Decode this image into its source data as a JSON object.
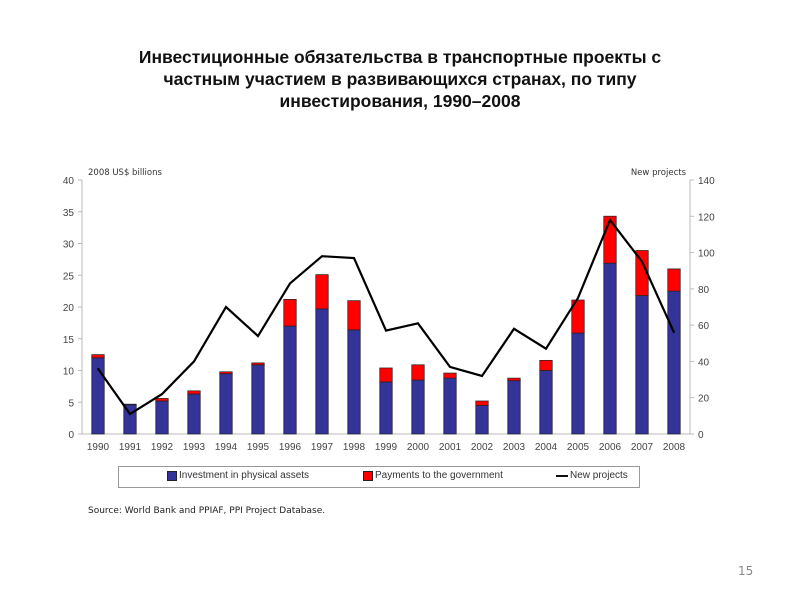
{
  "title": "Инвестиционные обязательства в транспортные проекты  с частным участием в развивающихся странах, по типу инвестирования, 1990–2008",
  "source": "Source: World Bank and PPIAF, PPI Project Database.",
  "page_number": "15",
  "chart_data": {
    "type": "bar",
    "stacked": true,
    "title": "",
    "y_left_label": "2008 US$ billions",
    "y_right_label": "New projects",
    "ylim_left": [
      0,
      40
    ],
    "yticks_left": [
      0,
      5,
      10,
      15,
      20,
      25,
      30,
      35,
      40
    ],
    "ylim_right": [
      0,
      140
    ],
    "yticks_right": [
      0,
      20,
      40,
      60,
      80,
      100,
      120,
      140
    ],
    "grid": false,
    "legend_position": "bottom",
    "categories": [
      "1990",
      "1991",
      "1992",
      "1993",
      "1994",
      "1995",
      "1996",
      "1997",
      "1998",
      "1999",
      "2000",
      "2001",
      "2002",
      "2003",
      "2004",
      "2005",
      "2006",
      "2007",
      "2008"
    ],
    "series": [
      {
        "name": "Investment in physical assets",
        "type": "bar",
        "axis": "left",
        "color": "#333399",
        "values": [
          12.0,
          4.6,
          5.2,
          6.3,
          9.5,
          10.9,
          17.0,
          19.7,
          16.4,
          8.2,
          8.5,
          8.8,
          4.5,
          8.4,
          10.0,
          15.9,
          26.9,
          21.8,
          22.5
        ]
      },
      {
        "name": "Payments to the government",
        "type": "bar",
        "axis": "left",
        "color": "#ff0000",
        "values": [
          0.5,
          0.1,
          0.4,
          0.5,
          0.3,
          0.3,
          4.2,
          5.4,
          4.6,
          2.2,
          2.4,
          0.8,
          0.7,
          0.4,
          1.6,
          5.2,
          7.4,
          7.1,
          3.5
        ]
      },
      {
        "name": "New projects",
        "type": "line",
        "axis": "right",
        "color": "#000000",
        "values": [
          36,
          11,
          22,
          40,
          70,
          54,
          83,
          98,
          97,
          57,
          61,
          37,
          32,
          58,
          47,
          75,
          118,
          95,
          56
        ]
      }
    ]
  }
}
